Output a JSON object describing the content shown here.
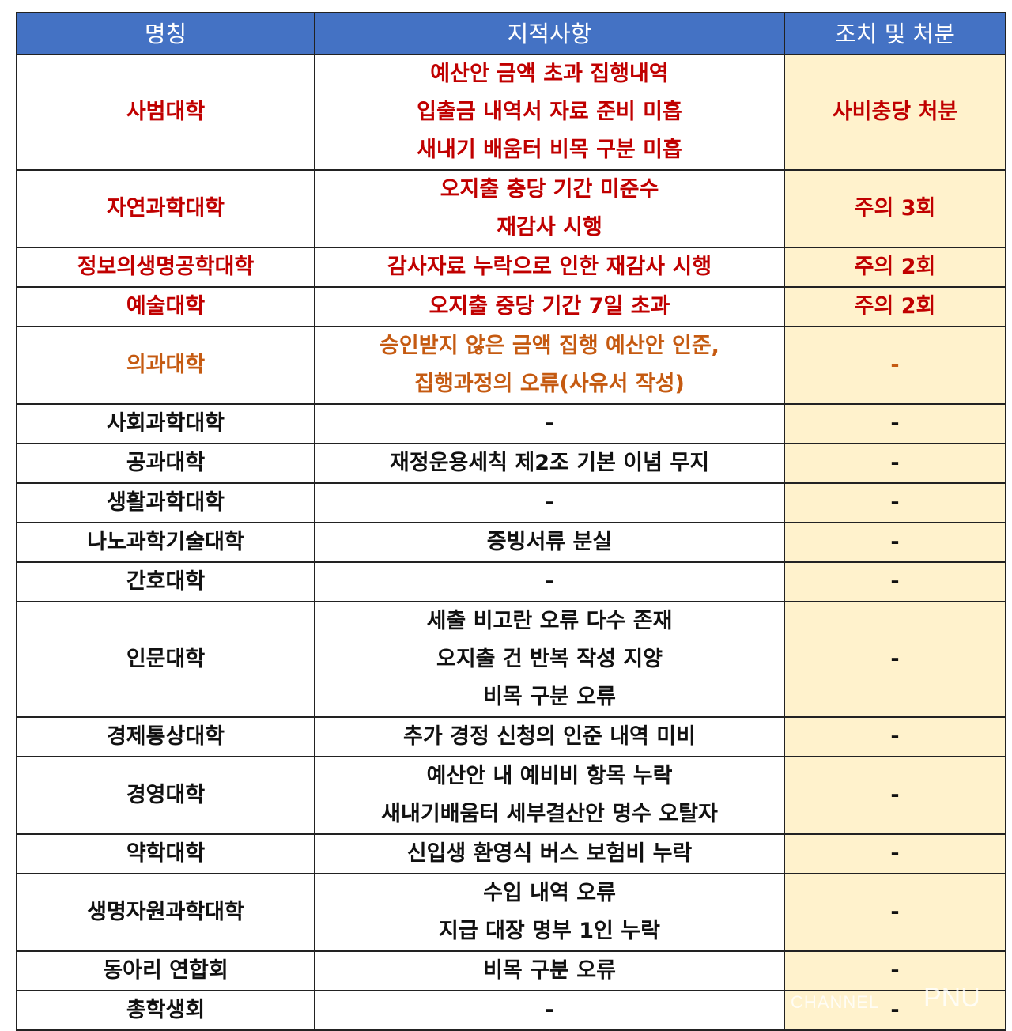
{
  "headers": [
    "명칭",
    "지적사항",
    "조치 및 처분"
  ],
  "colors": {
    "header_bg": "#4472C4",
    "action_bg": "#FFF2CC",
    "red_text": "#C00000",
    "orange_text": "#C55A11"
  },
  "rows": [
    {
      "name": "사범대학",
      "issues": [
        "예산안 금액 초과 집행내역",
        "입출금 내역서 자료 준비 미흡",
        "새내기 배움터 비목 구분 미흡"
      ],
      "action": "사비충당 처분",
      "tone": "red"
    },
    {
      "name": "자연과학대학",
      "issues": [
        "오지출 충당 기간 미준수",
        "재감사 시행"
      ],
      "action": "주의 3회",
      "tone": "red"
    },
    {
      "name": "정보의생명공학대학",
      "issues": [
        "감사자료 누락으로 인한 재감사 시행"
      ],
      "action": "주의 2회",
      "tone": "red"
    },
    {
      "name": "예술대학",
      "issues": [
        "오지출 중당 기간 7일 초과"
      ],
      "action": "주의 2회",
      "tone": "red"
    },
    {
      "name": "의과대학",
      "issues": [
        "승인받지 않은 금액 집행 예산안 인준,",
        "집행과정의 오류(사유서 작성)"
      ],
      "action": "-",
      "tone": "orange"
    },
    {
      "name": "사회과학대학",
      "issues": [
        "-"
      ],
      "action": "-",
      "tone": "black"
    },
    {
      "name": "공과대학",
      "issues": [
        "재정운용세칙 제2조 기본 이념 무지"
      ],
      "action": "-",
      "tone": "black"
    },
    {
      "name": "생활과학대학",
      "issues": [
        "-"
      ],
      "action": "-",
      "tone": "black"
    },
    {
      "name": "나노과학기술대학",
      "issues": [
        "증빙서류 분실"
      ],
      "action": "-",
      "tone": "black"
    },
    {
      "name": "간호대학",
      "issues": [
        "-"
      ],
      "action": "-",
      "tone": "black"
    },
    {
      "name": "인문대학",
      "issues": [
        "세출 비고란 오류 다수 존재",
        "오지출 건 반복 작성 지양",
        "비목 구분 오류"
      ],
      "action": "-",
      "tone": "black"
    },
    {
      "name": "경제통상대학",
      "issues": [
        "추가 경정 신청의 인준 내역 미비"
      ],
      "action": "-",
      "tone": "black"
    },
    {
      "name": "경영대학",
      "issues": [
        "예산안 내 예비비 항목 누락",
        "새내기배움터 세부결산안 명수 오탈자"
      ],
      "action": "-",
      "tone": "black"
    },
    {
      "name": "약학대학",
      "issues": [
        "신입생 환영식 버스 보험비 누락"
      ],
      "action": "-",
      "tone": "black"
    },
    {
      "name": "생명자원과학대학",
      "issues": [
        "수입 내역 오류",
        "지급 대장 명부 1인 누락"
      ],
      "action": "-",
      "tone": "black"
    },
    {
      "name": "동아리 연합회",
      "issues": [
        "비목 구분 오류"
      ],
      "action": "-",
      "tone": "black"
    },
    {
      "name": "총학생회",
      "issues": [
        "-"
      ],
      "action": "-",
      "tone": "black"
    }
  ],
  "watermark": {
    "prefix": "CHANNEL",
    "brand": "PNU"
  }
}
